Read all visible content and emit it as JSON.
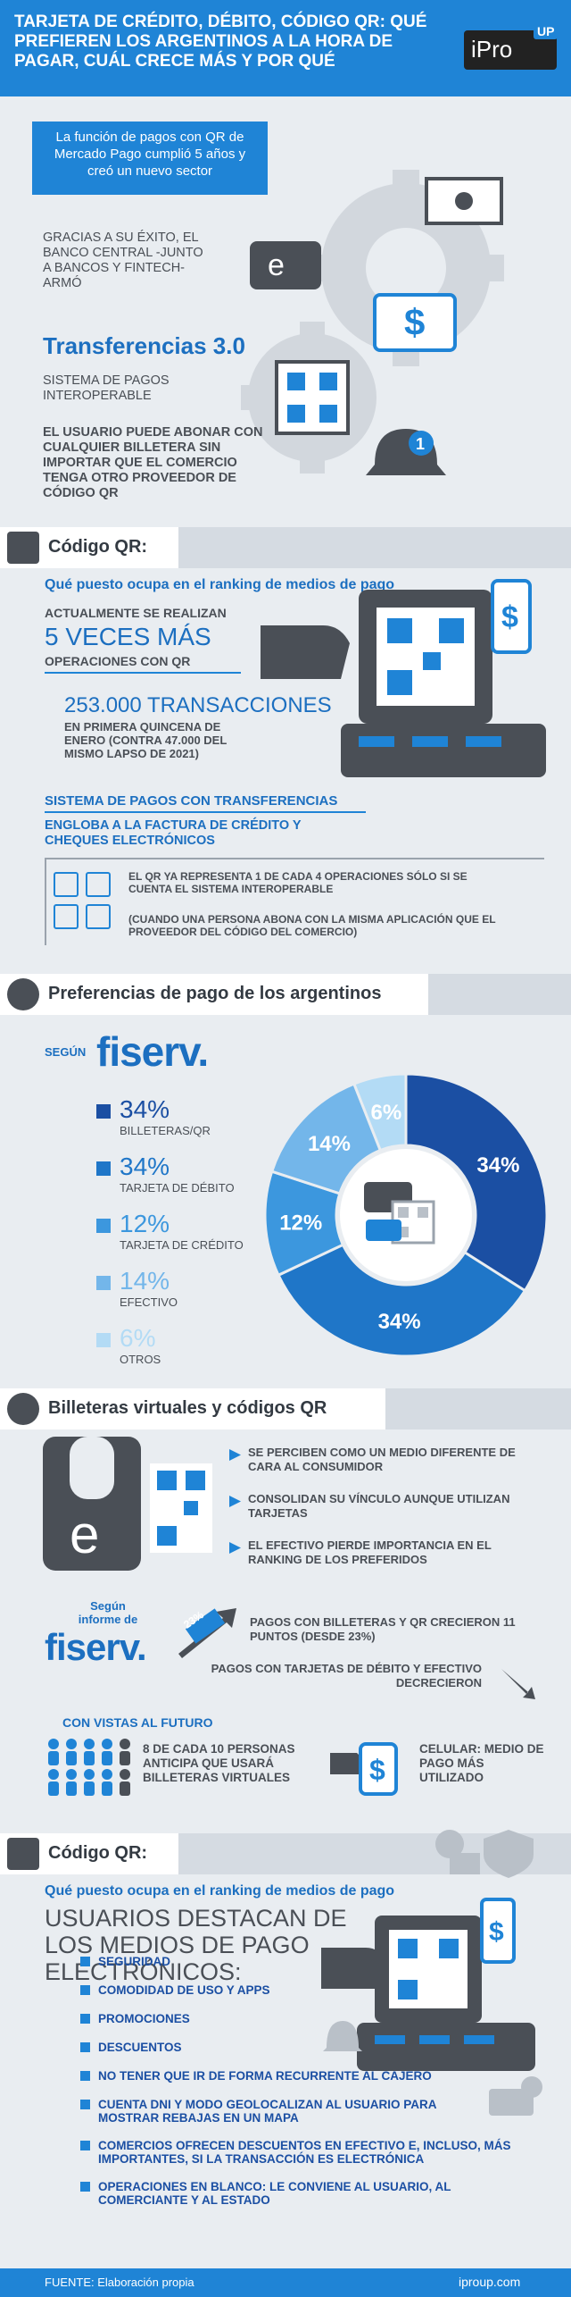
{
  "header": {
    "title": "TARJETA DE CRÉDITO, DÉBITO, CÓDIGO QR: QUÉ PREFIEREN LOS ARGENTINOS A LA HORA DE PAGAR, CUÁL CRECE MÁS Y POR QUÉ",
    "logo_text": "iPro",
    "logo_badge": "UP"
  },
  "intro": {
    "pill_text": "La función de pagos con QR de Mercado Pago cumplió 5 años y creó un nuevo sector",
    "p1": "GRACIAS A SU ÉXITO, EL BANCO CENTRAL -JUNTO A BANCOS Y FINTECH- ARMÓ",
    "highlight": "Transferencias 3.0",
    "p2": "SISTEMA DE PAGOS INTEROPERABLE",
    "p3": "EL USUARIO PUEDE ABONAR CON CUALQUIER BILLETERA SIN IMPORTAR QUE EL COMERCIO TENGA OTRO PROVEEDOR DE CÓDIGO QR",
    "bell_badge": "1",
    "gear_mark": "e"
  },
  "qr1": {
    "title": "Código QR:",
    "subtitle": "Qué puesto ocupa en el ranking de medios de pago",
    "line1": "ACTUALMENTE SE REALIZAN",
    "big": "5 VECES MÁS",
    "line2": "OPERACIONES CON QR",
    "tx_big": "253.000 TRANSACCIONES",
    "tx_small": "EN PRIMERA QUINCENA DE ENERO (CONTRA 47.000 DEL MISMO LAPSO DE 2021)",
    "sys_title": "SISTEMA DE PAGOS CON TRANSFERENCIAS",
    "sys_sub": "ENGLOBA A LA FACTURA DE CRÉDITO Y CHEQUES ELECTRÓNICOS",
    "note1": "EL QR YA REPRESENTA 1 DE CADA 4 OPERACIONES SÓLO SI SE CUENTA EL SISTEMA INTEROPERABLE",
    "note2": "(CUANDO UNA PERSONA ABONA CON LA MISMA APLICACIÓN QUE EL PROVEEDOR DEL CÓDIGO DEL COMERCIO)"
  },
  "prefs": {
    "title": "Preferencias de pago de los argentinos",
    "segun": "SEGÚN",
    "brand": "fiserv.",
    "legend": [
      {
        "pct": "34%",
        "label": "BILLETERAS/QR",
        "color": "#1b4fa3"
      },
      {
        "pct": "34%",
        "label": "TARJETA DE DÉBITO",
        "color": "#1f76c8"
      },
      {
        "pct": "12%",
        "label": "TARJETA DE CRÉDITO",
        "color": "#3c97de"
      },
      {
        "pct": "14%",
        "label": "EFECTIVO",
        "color": "#73b6ea"
      },
      {
        "pct": "6%",
        "label": "OTROS",
        "color": "#b3dbf5"
      }
    ]
  },
  "chart_data": {
    "type": "pie",
    "categories": [
      "BILLETERAS/QR",
      "TARJETA DE DÉBITO",
      "TARJETA DE CRÉDITO",
      "EFECTIVO",
      "OTROS"
    ],
    "values": [
      34,
      34,
      12,
      14,
      6
    ],
    "colors": [
      "#1b4fa3",
      "#1f76c8",
      "#3c97de",
      "#73b6ea",
      "#b3dbf5"
    ],
    "labels": [
      "34%",
      "34%",
      "12%",
      "14%",
      "6%"
    ]
  },
  "wallets": {
    "title": "Billeteras virtuales y códigos QR",
    "b1": "SE PERCIBEN COMO UN MEDIO DIFERENTE DE CARA AL CONSUMIDOR",
    "b2": "CONSOLIDAN SU VÍNCULO AUNQUE UTILIZAN TARJETAS",
    "b3": "EL EFECTIVO PIERDE IMPORTANCIA EN EL RANKING DE LOS PREFERIDOS",
    "segun": "Según informe de",
    "brand": "fiserv.",
    "up_badge": "23%",
    "up_text": "PAGOS CON BILLETERAS Y QR CRECIERON 11 PUNTOS (DESDE 23%)",
    "down_text": "PAGOS CON TARJETAS DE DÉBITO Y EFECTIVO DECRECIERON",
    "future_title": "CON VISTAS AL FUTURO",
    "future_left": "8 DE CADA 10 PERSONAS ANTICIPA QUE USARÁ BILLETERAS VIRTUALES",
    "future_right": "CELULAR: MEDIO DE PAGO MÁS UTILIZADO"
  },
  "qr2": {
    "title": "Código QR:",
    "subtitle": "Qué puesto ocupa en el ranking de medios de pago",
    "big": "USUARIOS DESTACAN DE LOS MEDIOS DE PAGO ELECTRÓNICOS:",
    "items": [
      "SEGURIDAD",
      "COMODIDAD DE USO Y APPS",
      "PROMOCIONES",
      "DESCUENTOS",
      "NO TENER QUE IR DE FORMA RECURRENTE AL CAJERO",
      "CUENTA DNI Y MODO GEOLOCALIZAN AL USUARIO PARA MOSTRAR REBAJAS EN UN MAPA",
      "COMERCIOS OFRECEN DESCUENTOS EN EFECTIVO E, INCLUSO, MÁS IMPORTANTES, SI LA TRANSACCIÓN ES ELECTRÓNICA",
      "OPERACIONES EN BLANCO: LE CONVIENE AL USUARIO, AL COMERCIANTE Y AL ESTADO"
    ]
  },
  "footer": {
    "source": "FUENTE: Elaboración propia",
    "site": "iproup.com"
  }
}
